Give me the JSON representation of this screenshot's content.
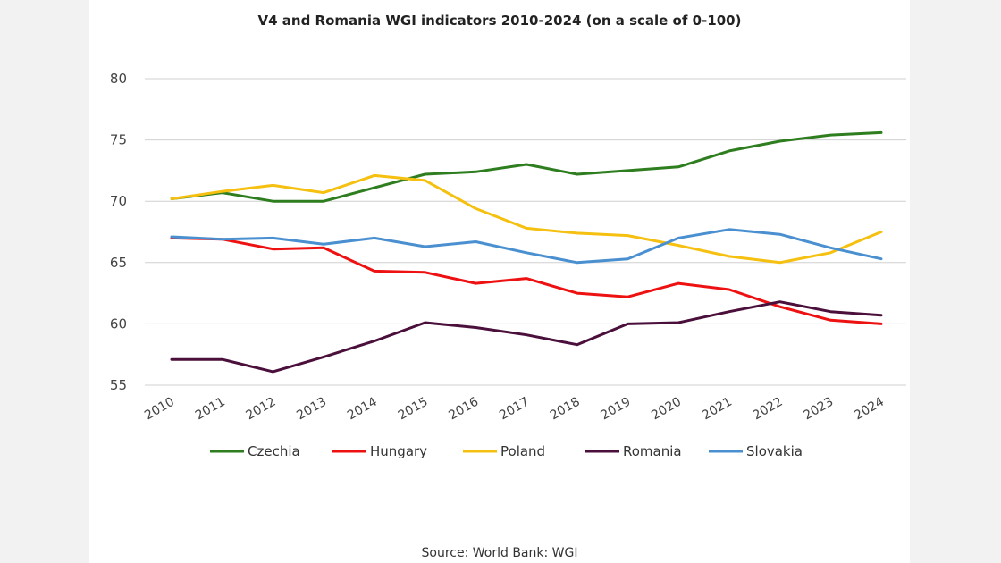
{
  "chart_data": {
    "type": "line",
    "title": "V4 and Romania WGI indicators 2010-2024 (on a scale of 0-100)",
    "source": "Source: World Bank: WGI",
    "x": [
      "2010",
      "2011",
      "2012",
      "2013",
      "2014",
      "2015",
      "2016",
      "2017",
      "2018",
      "2019",
      "2020",
      "2021",
      "2022",
      "2023",
      "2024"
    ],
    "ylim": [
      55,
      80
    ],
    "yticks": [
      "80",
      "75",
      "70",
      "65",
      "60",
      "55"
    ],
    "grid": true,
    "legend_position": "bottom",
    "series": [
      {
        "name": "Czechia",
        "color": "#2e7d1f",
        "values": [
          70.2,
          70.7,
          70.0,
          70.0,
          71.1,
          72.2,
          72.4,
          73.0,
          72.2,
          72.5,
          72.8,
          74.1,
          74.9,
          75.4,
          75.6
        ]
      },
      {
        "name": "Hungary",
        "color": "#ee1111",
        "values": [
          67.0,
          66.9,
          66.1,
          66.2,
          64.3,
          64.2,
          63.3,
          63.7,
          62.5,
          62.2,
          63.3,
          62.8,
          61.4,
          60.3,
          60.0
        ]
      },
      {
        "name": "Poland",
        "color": "#f5c010",
        "values": [
          70.2,
          70.8,
          71.3,
          70.7,
          72.1,
          71.7,
          69.4,
          67.8,
          67.4,
          67.2,
          66.4,
          65.5,
          65.0,
          65.8,
          67.5
        ]
      },
      {
        "name": "Romania",
        "color": "#4a0f3a",
        "values": [
          57.1,
          57.1,
          56.1,
          57.3,
          58.6,
          60.1,
          59.7,
          59.1,
          58.3,
          60.0,
          60.1,
          61.0,
          61.8,
          61.0,
          60.7
        ]
      },
      {
        "name": "Slovakia",
        "color": "#4a90d0",
        "values": [
          67.1,
          66.9,
          67.0,
          66.5,
          67.0,
          66.3,
          66.7,
          65.8,
          65.0,
          65.3,
          67.0,
          67.7,
          67.3,
          66.2,
          65.3
        ]
      }
    ]
  }
}
